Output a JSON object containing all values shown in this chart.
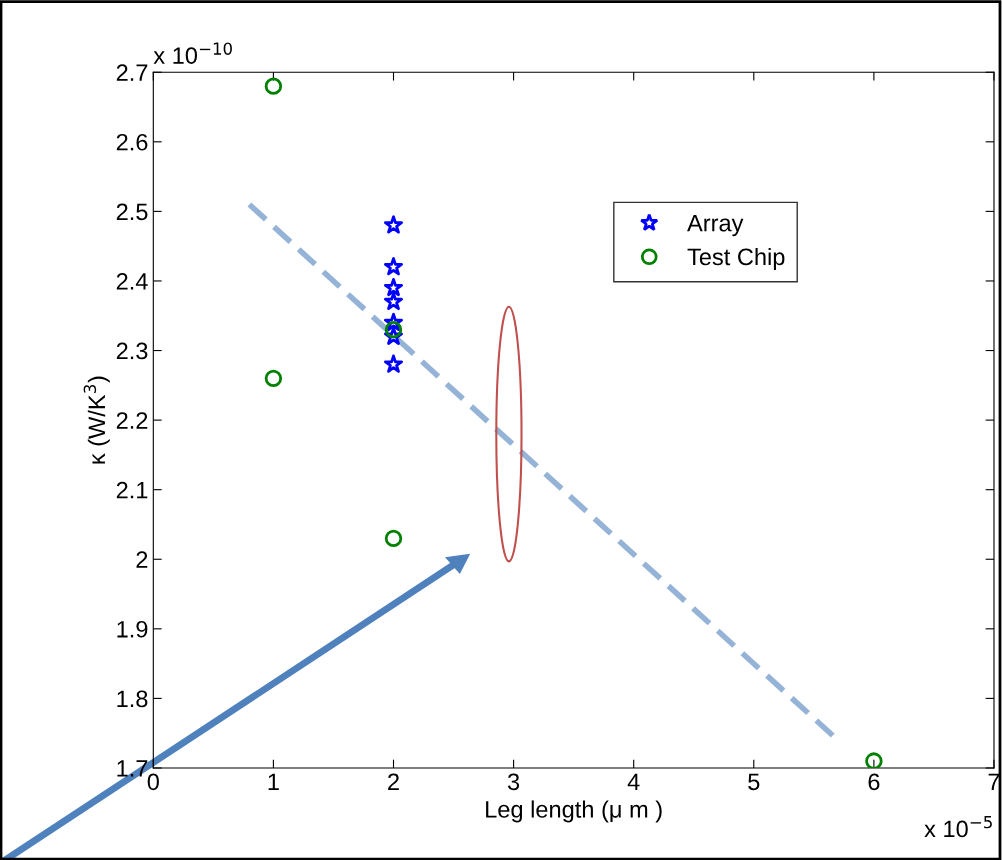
{
  "chart_data": {
    "type": "scatter",
    "xlabel": "Leg length (μ m )",
    "ylabel": "κ (W/K$^{3}$)",
    "series": [
      {
        "name": "Array",
        "color": "#0000ff",
        "marker": "star",
        "x": [
          2,
          2,
          2,
          2,
          2,
          2,
          2
        ],
        "values": [
          2.48,
          2.42,
          2.39,
          2.37,
          2.34,
          2.32,
          2.28
        ]
      },
      {
        "name": "Test Chip",
        "color": "#008000",
        "marker": "circle",
        "x": [
          1,
          1,
          2,
          2,
          6
        ],
        "values": [
          2.68,
          2.26,
          2.33,
          2.03,
          1.71
        ]
      },
      {
        "type": "line",
        "color": "#95b3d7",
        "marker": "none",
        "line_style": "dashed",
        "x": [
          0.8,
          5.7
        ],
        "values": [
          2.51,
          1.74
        ]
      }
    ],
    "xlim": [
      0,
      7
    ],
    "ylim": [
      1.7,
      2.7
    ],
    "xticks": [
      0,
      1,
      2,
      3,
      4,
      5,
      6,
      7
    ],
    "yticks": [
      1.7,
      1.8,
      1.9,
      2,
      2.1,
      2.2,
      2.3,
      2.4,
      2.5,
      2.6,
      2.7
    ],
    "annotations": [
      "x 10$^{−10}$",
      "x 10$^{−5}$"
    ],
    "grid": false,
    "legend": "top right"
  }
}
